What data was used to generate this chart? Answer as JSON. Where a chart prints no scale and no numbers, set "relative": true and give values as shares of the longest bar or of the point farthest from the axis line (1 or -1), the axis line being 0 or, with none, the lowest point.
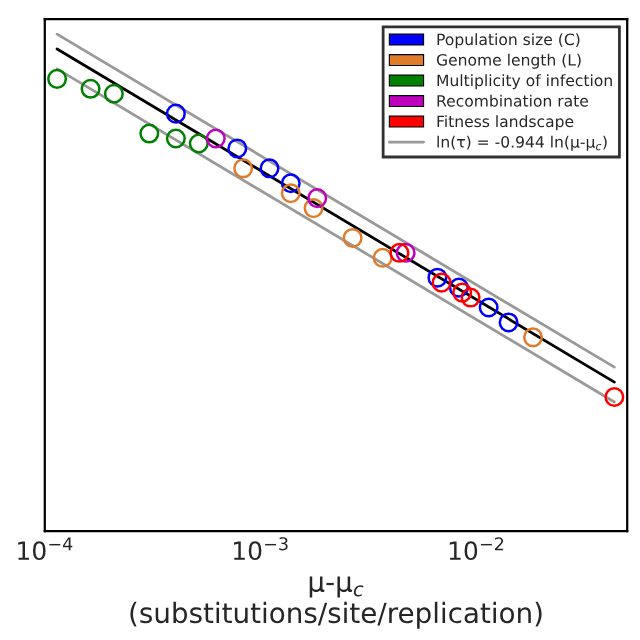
{
  "chart_data": {
    "type": "scatter",
    "relative": true,
    "log": "x",
    "marker": "circle",
    "legend": "top right",
    "grid": false,
    "tick_labels": "x",
    "xlabel": "μ-μ$_{c}$\n(substitutions/site/replication)",
    "xlim": [
      0.0001,
      0.05
    ],
    "xticks": [
      {
        "value": 0.0001,
        "label": "10$^{−4}$"
      },
      {
        "value": 0.001,
        "label": "10$^{−3}$"
      },
      {
        "value": 0.01,
        "label": "10$^{−2}$"
      }
    ],
    "series": [
      {
        "name": "Population size (C)",
        "color": "#0000ff",
        "x": [
          0.000405,
          0.00078,
          0.0011,
          0.00138,
          0.0066,
          0.0083,
          0.0114,
          0.0141
        ],
        "values": [
          0.84,
          0.77,
          0.73,
          0.7,
          0.51,
          0.49,
          0.45,
          0.42
        ]
      },
      {
        "name": "Genome length (L)",
        "color": "#e07b2a",
        "x": [
          0.00083,
          0.00138,
          0.00176,
          0.00267,
          0.00368,
          0.0183
        ],
        "values": [
          0.73,
          0.68,
          0.65,
          0.59,
          0.55,
          0.39
        ]
      },
      {
        "name": "Multiplicity of infection",
        "color": "#008000",
        "x": [
          0.000114,
          0.000163,
          0.000209,
          0.000305,
          0.000405,
          0.000517
        ],
        "values": [
          0.91,
          0.89,
          0.88,
          0.8,
          0.79,
          0.78
        ]
      },
      {
        "name": "Recombination rate",
        "color": "#bf00bf",
        "x": [
          0.00062,
          0.00183,
          0.0047
        ],
        "values": [
          0.79,
          0.67,
          0.56
        ]
      },
      {
        "name": "Fitness landscape",
        "color": "#ff0000",
        "x": [
          0.0044,
          0.0069,
          0.0086,
          0.0094,
          0.0436
        ],
        "values": [
          0.56,
          0.5,
          0.48,
          0.47,
          0.27
        ]
      },
      {
        "type": "line",
        "marker": "none",
        "color": "#000000",
        "x": [
          0.000114,
          0.0436
        ],
        "values": [
          0.97,
          0.3
        ]
      },
      {
        "type": "line",
        "marker": "none",
        "name": "ln(τ) = -0.944 ln(μ-μ$_{c}$)",
        "color": "#999999",
        "x": [
          0.000114,
          0.0436
        ],
        "values": [
          1.0,
          0.33
        ]
      },
      {
        "type": "line",
        "marker": "none",
        "color": "#999999",
        "x": [
          0.000114,
          0.0436
        ],
        "values": [
          0.93,
          0.26
        ]
      }
    ]
  }
}
